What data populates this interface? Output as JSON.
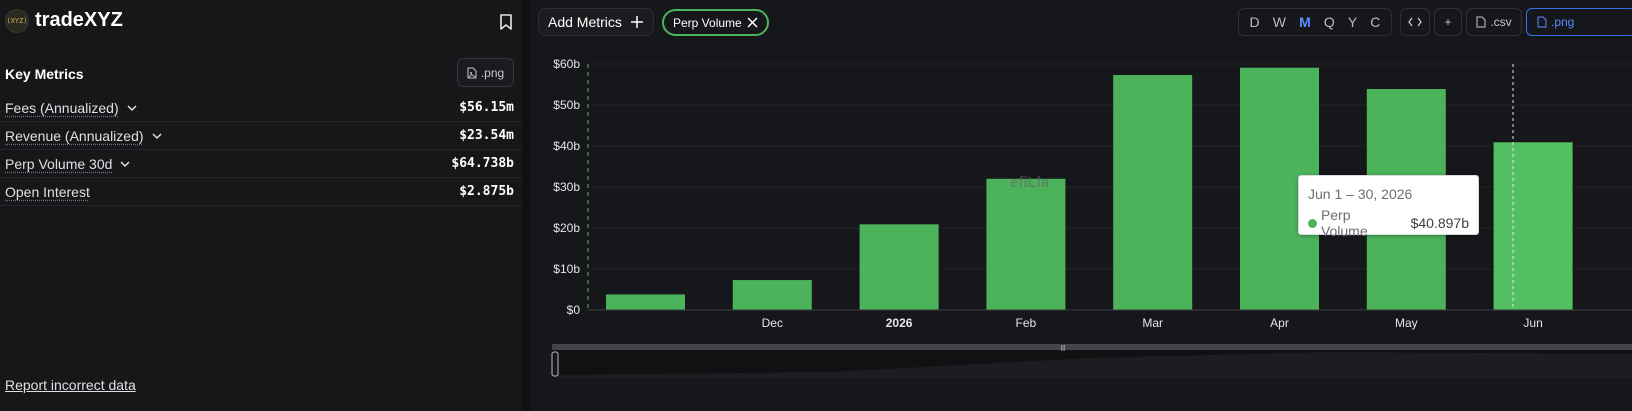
{
  "sidebar": {
    "brand": "tradeXYZ",
    "logo_text": "(XYZ)",
    "key_metrics_title": "Key Metrics",
    "png_label": ".png",
    "metrics": [
      {
        "label": "Fees (Annualized)",
        "value": "$56.15m",
        "has_chevron": true
      },
      {
        "label": "Revenue (Annualized)",
        "value": "$23.54m",
        "has_chevron": true
      },
      {
        "label": "Perp Volume 30d",
        "value": "$64.738b",
        "has_chevron": true
      },
      {
        "label": "Open Interest",
        "value": "$2.875b",
        "has_chevron": false
      }
    ],
    "report_link": "Report incorrect data"
  },
  "toolbar": {
    "add_metrics": "Add Metrics",
    "chip_label": "Perp Volume",
    "periods": [
      "D",
      "W",
      "M",
      "Q",
      "Y",
      "C"
    ],
    "active_period": "M",
    "embed_label": "<>",
    "plus_label": "+",
    "csv_label": ".csv",
    "png_label": ".png"
  },
  "colors": {
    "bar": "#4cb35b",
    "accent": "#5b8cff",
    "chip_border": "#4cb35b"
  },
  "watermark": "efiLla",
  "tooltip": {
    "range": "Jun 1 – 30, 2026",
    "series": "Perp Volume",
    "value": "$40.897b"
  },
  "chart_data": {
    "type": "bar",
    "series": [
      {
        "name": "Perp Volume",
        "values": [
          3.8,
          7.3,
          20.9,
          32.0,
          57.3,
          59.1,
          53.9,
          40.9
        ]
      }
    ],
    "x_tick_labels": [
      "Dec",
      "2026",
      "Feb",
      "Mar",
      "Apr",
      "May",
      "Jun"
    ],
    "y_tick_labels": [
      "$0",
      "$10b",
      "$20b",
      "$30b",
      "$40b",
      "$50b",
      "$60b"
    ],
    "ylim": [
      0,
      60
    ],
    "y_unit": "$b",
    "grid": true,
    "highlighted_bar": 7
  }
}
